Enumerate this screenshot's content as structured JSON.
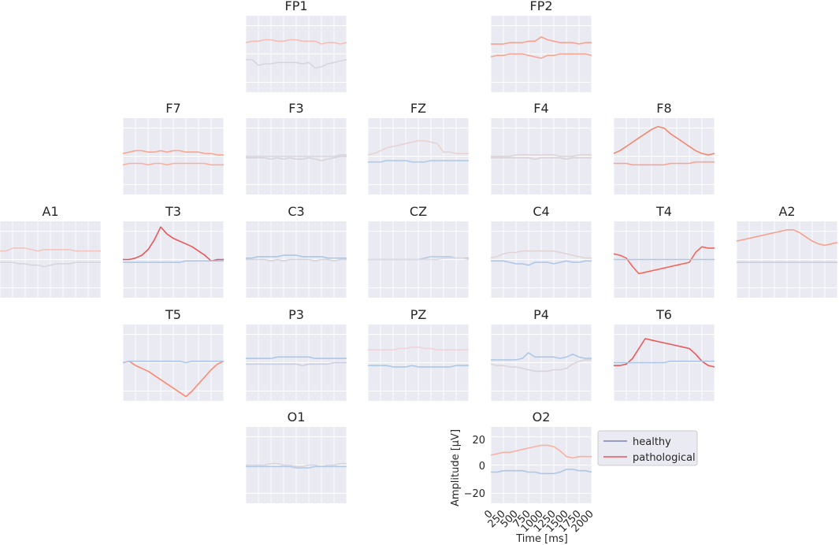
{
  "chart_data": {
    "type": "line",
    "xlabel": "Time [ms]",
    "ylabel": "Amplitude [μV]",
    "xlim": [
      0,
      2000
    ],
    "ylim": [
      -27,
      27
    ],
    "x_ticks": [
      0,
      250,
      500,
      750,
      1000,
      1250,
      1500,
      1750,
      2000
    ],
    "x_tick_labels": [
      "0",
      "250",
      "500",
      "750",
      "1000",
      "1250",
      "1500",
      "1750",
      "2000"
    ],
    "y_ticks": [
      20,
      0,
      -20
    ],
    "y_tick_labels": [
      "20",
      "0",
      "−20"
    ],
    "grid": true,
    "legend": {
      "placement": "right of O2",
      "entries": [
        {
          "label": "healthy",
          "color": "#7b7fbf"
        },
        {
          "label": "pathological",
          "color": "#e8575a"
        }
      ]
    },
    "x": [
      0,
      125,
      250,
      375,
      500,
      625,
      750,
      875,
      1000,
      1125,
      1250,
      1375,
      1500,
      1625,
      1750,
      1875,
      2000
    ],
    "channels": [
      {
        "name": "FP1",
        "series": [
          {
            "color": "#f7bcb4",
            "values": [
              8,
              9,
              9,
              10,
              10,
              9,
              9,
              10,
              10,
              9,
              9,
              9,
              7,
              8,
              8,
              7,
              8
            ]
          },
          {
            "color": "#d7d6e0",
            "values": [
              -4,
              -4,
              -8,
              -7,
              -7,
              -6,
              -6,
              -6,
              -6,
              -7,
              -6,
              -10,
              -9,
              -7,
              -6,
              -5,
              -4
            ]
          }
        ]
      },
      {
        "name": "FP2",
        "series": [
          {
            "color": "#f9a08f",
            "values": [
              7,
              7,
              7,
              8,
              8,
              8,
              9,
              9,
              12,
              10,
              9,
              8,
              8,
              8,
              7,
              8,
              8
            ]
          },
          {
            "color": "#f7a492",
            "values": [
              -2,
              -1,
              -1,
              0,
              0,
              0,
              -1,
              -2,
              -3,
              -1,
              -1,
              0,
              0,
              0,
              0,
              0,
              -1
            ]
          }
        ]
      },
      {
        "name": "F7",
        "series": [
          {
            "color": "#f9a58f",
            "values": [
              2,
              3,
              4,
              4,
              3,
              3,
              4,
              3,
              4,
              4,
              3,
              3,
              3,
              2,
              2,
              1,
              1
            ]
          },
          {
            "color": "#f7b0a0",
            "values": [
              -6,
              -5,
              -5,
              -5,
              -6,
              -5,
              -5,
              -6,
              -5,
              -5,
              -5,
              -5,
              -5,
              -5,
              -6,
              -6,
              -6
            ]
          }
        ]
      },
      {
        "name": "F3",
        "series": [
          {
            "color": "#d7d6e0",
            "values": [
              0,
              0,
              0,
              0,
              0,
              0,
              0,
              0,
              0,
              0,
              0,
              0,
              0,
              0,
              0,
              1,
              1
            ]
          },
          {
            "color": "#d8d2d8",
            "values": [
              -1,
              -1,
              -1,
              -1,
              -2,
              -1,
              -2,
              -1,
              -2,
              -2,
              -1,
              -2,
              -3,
              -2,
              -1,
              0,
              0
            ]
          }
        ]
      },
      {
        "name": "FZ",
        "series": [
          {
            "color": "#e8d2d2",
            "values": [
              1,
              2,
              4,
              6,
              7,
              8,
              9,
              10,
              11,
              11,
              10,
              9,
              3,
              3,
              2,
              2,
              2
            ]
          },
          {
            "color": "#aecbec",
            "values": [
              -4,
              -4,
              -4,
              -3,
              -3,
              -3,
              -3,
              -4,
              -4,
              -4,
              -3,
              -3,
              -3,
              -3,
              -3,
              -3,
              -3
            ]
          }
        ]
      },
      {
        "name": "F4",
        "series": [
          {
            "color": "#dcd2da",
            "values": [
              0,
              0,
              0,
              0,
              1,
              1,
              1,
              1,
              1,
              1,
              1,
              0,
              0,
              0,
              1,
              1,
              1
            ]
          },
          {
            "color": "#d8d2d8",
            "values": [
              -1,
              -1,
              -1,
              -1,
              -1,
              -1,
              -1,
              -2,
              -1,
              -1,
              -1,
              -1,
              -2,
              -1,
              -1,
              -1,
              -1
            ]
          }
        ]
      },
      {
        "name": "F8",
        "series": [
          {
            "color": "#f4866d",
            "values": [
              2,
              4,
              7,
              10,
              13,
              16,
              19,
              21,
              20,
              16,
              13,
              10,
              7,
              4,
              2,
              1,
              2
            ]
          },
          {
            "color": "#f7a492",
            "values": [
              -5,
              -5,
              -5,
              -6,
              -6,
              -6,
              -6,
              -6,
              -6,
              -5,
              -5,
              -5,
              -5,
              -4,
              -4,
              -4,
              -4
            ]
          }
        ]
      },
      {
        "name": "A1",
        "series": [
          {
            "color": "#f2c6be",
            "values": [
              6,
              6,
              8,
              8,
              8,
              7,
              6,
              7,
              7,
              7,
              7,
              7,
              6,
              6,
              6,
              6,
              6
            ]
          },
          {
            "color": "#d7d6e0",
            "values": [
              -2,
              -2,
              -2,
              -3,
              -3,
              -4,
              -4,
              -5,
              -4,
              -3,
              -3,
              -3,
              -2,
              -2,
              -2,
              -2,
              -2
            ]
          }
        ]
      },
      {
        "name": "T3",
        "series": [
          {
            "color": "#e8575a",
            "values": [
              0,
              0,
              1,
              3,
              7,
              14,
              23,
              18,
              15,
              13,
              11,
              9,
              6,
              3,
              -1,
              0,
              0
            ]
          },
          {
            "color": "#aec7e8",
            "values": [
              -2,
              -2,
              -2,
              -2,
              -2,
              -2,
              -2,
              -2,
              -2,
              -2,
              -1,
              -1,
              -1,
              -1,
              -1,
              -1,
              -1
            ]
          }
        ]
      },
      {
        "name": "C3",
        "series": [
          {
            "color": "#a9c8ea",
            "values": [
              1,
              1,
              2,
              2,
              2,
              2,
              3,
              3,
              3,
              2,
              2,
              2,
              2,
              1,
              1,
              1,
              1
            ]
          },
          {
            "color": "#d8d2d8",
            "values": [
              0,
              0,
              0,
              0,
              -1,
              0,
              -1,
              0,
              0,
              0,
              0,
              -1,
              0,
              0,
              -1,
              0,
              0
            ]
          }
        ]
      },
      {
        "name": "CZ",
        "series": [
          {
            "color": "#b4cbe6",
            "values": [
              0,
              0,
              0,
              0,
              0,
              0,
              0,
              0,
              0,
              1,
              2,
              2,
              2,
              2,
              1,
              1,
              1
            ]
          },
          {
            "color": "#dfd8de",
            "values": [
              0,
              0,
              0,
              0,
              0,
              0,
              0,
              0,
              0,
              0,
              0,
              0,
              1,
              1,
              1,
              1,
              0
            ]
          }
        ]
      },
      {
        "name": "C4",
        "series": [
          {
            "color": "#e2d3d6",
            "values": [
              1,
              2,
              4,
              5,
              5,
              6,
              6,
              6,
              6,
              6,
              6,
              5,
              4,
              3,
              2,
              1,
              1
            ]
          },
          {
            "color": "#aec7e8",
            "values": [
              -1,
              -1,
              -1,
              -2,
              -3,
              -3,
              -4,
              -2,
              -2,
              -2,
              -3,
              -2,
              -1,
              -2,
              -2,
              -1,
              -1
            ]
          }
        ]
      },
      {
        "name": "T4",
        "series": [
          {
            "color": "#f4655b",
            "values": [
              4,
              3,
              1,
              -5,
              -10,
              -9,
              -8,
              -7,
              -6,
              -5,
              -4,
              -3,
              -2,
              5,
              9,
              8,
              8
            ]
          },
          {
            "color": "#aec7e8",
            "values": [
              0,
              0,
              0,
              0,
              0,
              0,
              0,
              0,
              0,
              0,
              0,
              0,
              0,
              0,
              0,
              0,
              0
            ]
          }
        ]
      },
      {
        "name": "A2",
        "series": [
          {
            "color": "#f7a08e",
            "values": [
              13,
              14,
              15,
              16,
              17,
              18,
              19,
              20,
              21,
              21,
              19,
              16,
              13,
              11,
              10,
              11,
              12
            ]
          },
          {
            "color": "#c7cce0",
            "values": [
              -2,
              -2,
              -2,
              -2,
              -2,
              -2,
              -2,
              -2,
              -2,
              -2,
              -2,
              -2,
              -2,
              -2,
              -2,
              -2,
              -2
            ]
          }
        ]
      },
      {
        "name": "T5",
        "series": [
          {
            "color": "#f88a73",
            "values": [
              0,
              1,
              -2,
              -4,
              -6,
              -9,
              -12,
              -15,
              -18,
              -21,
              -24,
              -20,
              -15,
              -10,
              -5,
              -1,
              1
            ]
          },
          {
            "color": "#aec7e8",
            "values": [
              0,
              1,
              1,
              1,
              1,
              1,
              1,
              1,
              1,
              1,
              0,
              1,
              1,
              1,
              1,
              1,
              1
            ]
          }
        ]
      },
      {
        "name": "P3",
        "series": [
          {
            "color": "#a9c8ea",
            "values": [
              3,
              3,
              3,
              3,
              3,
              4,
              4,
              4,
              4,
              4,
              4,
              3,
              3,
              3,
              3,
              3,
              3
            ]
          },
          {
            "color": "#c9cfe0",
            "values": [
              -1,
              -1,
              -1,
              -1,
              -1,
              -1,
              -1,
              -1,
              -1,
              -2,
              -1,
              -1,
              -1,
              -1,
              0,
              0,
              0
            ]
          }
        ]
      },
      {
        "name": "PZ",
        "series": [
          {
            "color": "#ecd4d8",
            "values": [
              9,
              9,
              9,
              9,
              9,
              10,
              10,
              11,
              11,
              10,
              10,
              9,
              9,
              9,
              9,
              9,
              9
            ]
          },
          {
            "color": "#a9c8ea",
            "values": [
              -2,
              -2,
              -2,
              -2,
              -3,
              -3,
              -3,
              -2,
              -3,
              -3,
              -3,
              -3,
              -3,
              -3,
              -2,
              -2,
              -2
            ]
          }
        ]
      },
      {
        "name": "P4",
        "series": [
          {
            "color": "#aec7e8",
            "values": [
              2,
              2,
              2,
              2,
              2,
              3,
              7,
              4,
              4,
              4,
              4,
              3,
              4,
              6,
              4,
              3,
              3
            ]
          },
          {
            "color": "#dcd2da",
            "values": [
              -1,
              -2,
              -2,
              -3,
              -3,
              -4,
              -5,
              -6,
              -6,
              -6,
              -5,
              -5,
              -4,
              -1,
              1,
              2,
              2
            ]
          }
        ]
      },
      {
        "name": "T6",
        "series": [
          {
            "color": "#e8575a",
            "values": [
              -2,
              -2,
              -1,
              3,
              10,
              17,
              16,
              15,
              14,
              13,
              12,
              11,
              10,
              6,
              1,
              -2,
              -3
            ]
          },
          {
            "color": "#aec7e8",
            "values": [
              0,
              0,
              0,
              0,
              0,
              0,
              0,
              0,
              0,
              1,
              1,
              1,
              1,
              1,
              1,
              1,
              1
            ]
          }
        ]
      },
      {
        "name": "O1",
        "series": [
          {
            "color": "#d7d6e0",
            "values": [
              0,
              0,
              0,
              0,
              1,
              1,
              0,
              0,
              -1,
              -1,
              0,
              0,
              -1,
              0,
              0,
              1,
              1
            ]
          },
          {
            "color": "#b4cbe6",
            "values": [
              -1,
              -1,
              -1,
              -1,
              -1,
              -1,
              -1,
              -1,
              -2,
              -2,
              -2,
              -1,
              -1,
              -1,
              -1,
              -1,
              -1
            ]
          }
        ]
      },
      {
        "name": "O2",
        "series": [
          {
            "color": "#f9b0a0",
            "values": [
              7,
              8,
              9,
              9,
              10,
              11,
              12,
              13,
              14,
              14,
              13,
              10,
              6,
              5,
              6,
              6,
              6
            ]
          },
          {
            "color": "#aec7e8",
            "values": [
              -5,
              -5,
              -4,
              -4,
              -4,
              -4,
              -5,
              -5,
              -6,
              -6,
              -6,
              -5,
              -3,
              -3,
              -4,
              -4,
              -5
            ]
          }
        ]
      }
    ]
  }
}
